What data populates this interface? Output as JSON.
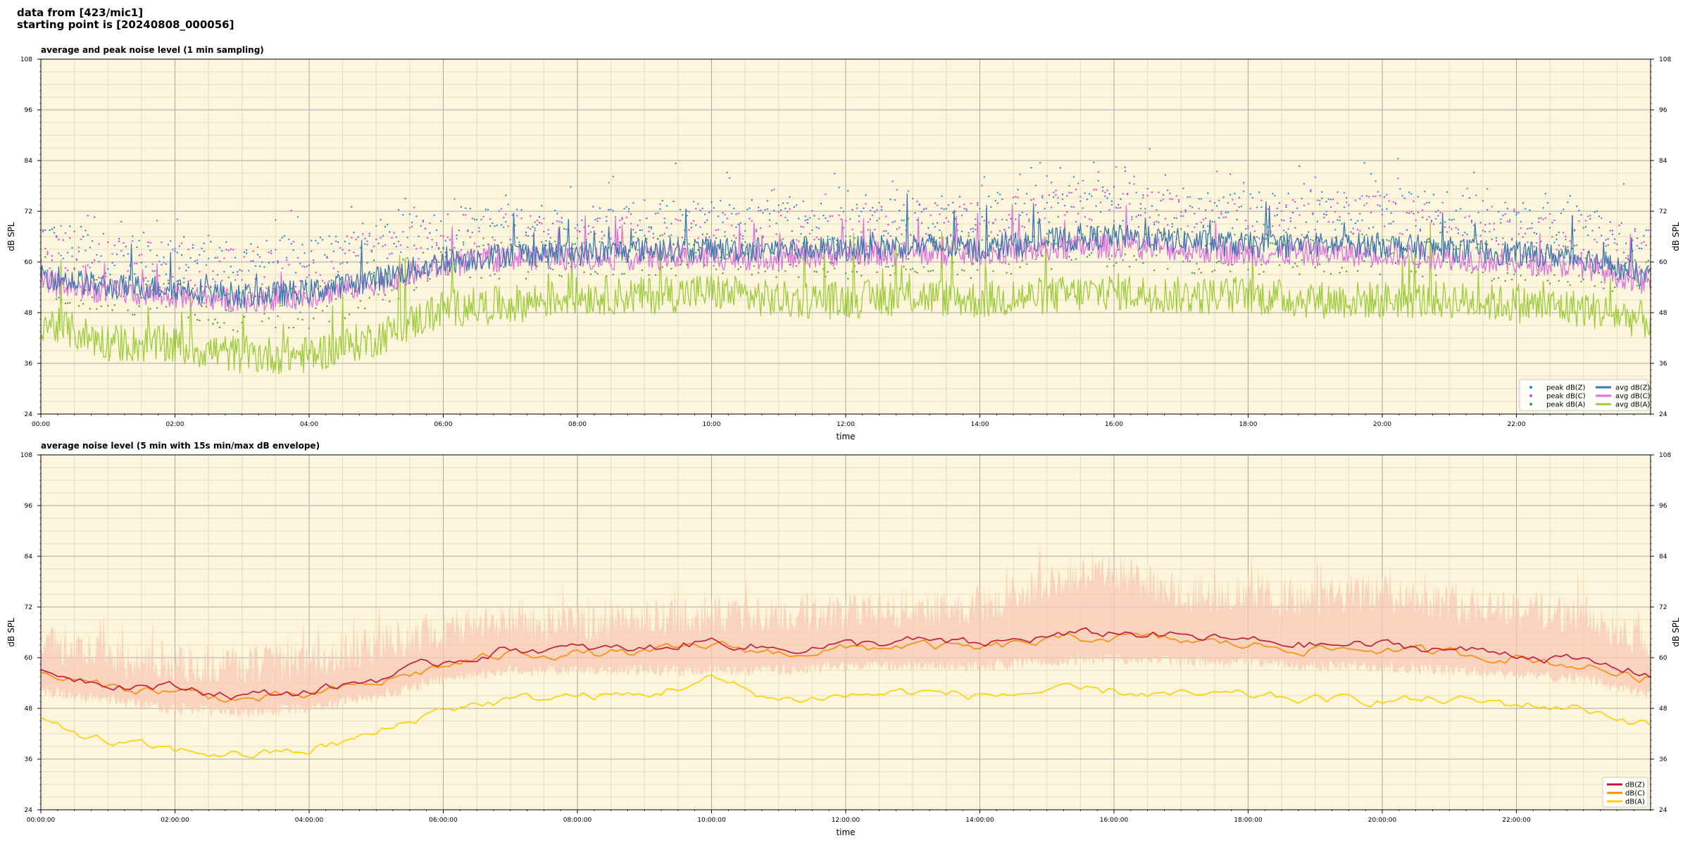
{
  "header": {
    "line1": "data from [423/mic1]",
    "line2": "starting point is [20240808_000056]"
  },
  "colors": {
    "plot_bg": "#fdf6dc",
    "grid_major": "#a8a8a8",
    "grid_minor": "#e6dcc0",
    "peak_z": "#1f8fd6",
    "peak_c": "#e040e0",
    "peak_a": "#4a9a3a",
    "avg_z": "#3b78b0",
    "avg_c": "#e070e0",
    "avg_a": "#9ccc3c",
    "z": "#c8143c",
    "c": "#ff8c00",
    "a": "#ffd000",
    "envelope": "#f8c8b4"
  },
  "chart_data": [
    {
      "type": "line",
      "title": "average and peak noise level (1 min sampling)",
      "xlabel": "time",
      "ylabel": "dB SPL",
      "ylim": [
        24,
        108
      ],
      "yticks": [
        "24",
        "36",
        "48",
        "60",
        "72",
        "84",
        "96",
        "108"
      ],
      "xlim_hours": [
        0,
        24
      ],
      "xticks": [
        "00:00",
        "02:00",
        "04:00",
        "06:00",
        "08:00",
        "10:00",
        "12:00",
        "14:00",
        "16:00",
        "18:00",
        "20:00",
        "22:00"
      ],
      "grid": true,
      "legend_position": "bottom-right",
      "legend": [
        {
          "label": "peak dB(Z)",
          "kind": "marker",
          "color_key": "peak_z"
        },
        {
          "label": "peak dB(C)",
          "kind": "marker",
          "color_key": "peak_c"
        },
        {
          "label": "peak dB(A)",
          "kind": "marker",
          "color_key": "peak_a"
        },
        {
          "label": "avg dB(Z)",
          "kind": "line",
          "color_key": "avg_z"
        },
        {
          "label": "avg dB(C)",
          "kind": "line",
          "color_key": "avg_c"
        },
        {
          "label": "avg dB(A)",
          "kind": "line",
          "color_key": "avg_a"
        }
      ],
      "x_hours": [
        0,
        1,
        2,
        3,
        4,
        5,
        6,
        7,
        8,
        9,
        10,
        11,
        12,
        13,
        14,
        15,
        16,
        17,
        18,
        19,
        20,
        21,
        22,
        23,
        24
      ],
      "series": [
        {
          "name": "avg dB(Z)",
          "color_key": "avg_z",
          "style": "line",
          "values": [
            57,
            54,
            54,
            52,
            53,
            56,
            60,
            62,
            62,
            63,
            63,
            63,
            63,
            64,
            63,
            65,
            66,
            65,
            64,
            64,
            64,
            63,
            62,
            61,
            56
          ]
        },
        {
          "name": "avg dB(C)",
          "color_key": "avg_c",
          "style": "line",
          "values": [
            55,
            53,
            52,
            51,
            52,
            55,
            59,
            61,
            61,
            61,
            61,
            61,
            62,
            62,
            62,
            63,
            64,
            63,
            62,
            62,
            62,
            61,
            60,
            59,
            55
          ]
        },
        {
          "name": "avg dB(A)",
          "color_key": "avg_a",
          "style": "line",
          "values": [
            46,
            41,
            40,
            38,
            38,
            42,
            49,
            50,
            52,
            52,
            53,
            51,
            51,
            52,
            51,
            52,
            53,
            52,
            52,
            51,
            51,
            51,
            50,
            49,
            46
          ]
        },
        {
          "name": "peak dB(Z)",
          "color_key": "peak_z",
          "style": "scatter",
          "values": [
            64,
            60,
            60,
            58,
            60,
            63,
            66,
            67,
            67,
            67,
            68,
            68,
            68,
            69,
            69,
            72,
            73,
            71,
            70,
            70,
            71,
            69,
            68,
            67,
            62
          ]
        },
        {
          "name": "peak dB(C)",
          "color_key": "peak_c",
          "style": "scatter",
          "values": [
            62,
            58,
            58,
            56,
            57,
            61,
            64,
            65,
            65,
            65,
            66,
            66,
            66,
            67,
            67,
            70,
            71,
            69,
            68,
            68,
            69,
            67,
            66,
            65,
            60
          ]
        },
        {
          "name": "peak dB(A)",
          "color_key": "peak_a",
          "style": "scatter",
          "values": [
            55,
            50,
            49,
            46,
            47,
            52,
            58,
            59,
            59,
            59,
            60,
            59,
            59,
            60,
            59,
            61,
            62,
            60,
            60,
            60,
            60,
            59,
            58,
            57,
            53
          ]
        }
      ]
    },
    {
      "type": "line",
      "title": "average noise level (5 min with 15s min/max dB envelope)",
      "xlabel": "time",
      "ylabel": "dB SPL",
      "ylim": [
        24,
        108
      ],
      "yticks": [
        "24",
        "36",
        "48",
        "60",
        "72",
        "84",
        "96",
        "108"
      ],
      "xlim_hours": [
        0,
        24
      ],
      "xticks": [
        "00:00:00",
        "02:00:00",
        "04:00:00",
        "06:00:00",
        "08:00:00",
        "10:00:00",
        "12:00:00",
        "14:00:00",
        "16:00:00",
        "18:00:00",
        "20:00:00",
        "22:00:00"
      ],
      "grid": true,
      "legend_position": "bottom-right",
      "legend": [
        {
          "label": "dB(Z)",
          "kind": "line",
          "color_key": "z"
        },
        {
          "label": "dB(C)",
          "kind": "line",
          "color_key": "c"
        },
        {
          "label": "dB(A)",
          "kind": "line",
          "color_key": "a"
        }
      ],
      "x_hours": [
        0,
        1,
        2,
        3,
        4,
        5,
        6,
        7,
        8,
        9,
        10,
        11,
        12,
        13,
        14,
        15,
        16,
        17,
        18,
        19,
        20,
        21,
        22,
        23,
        24
      ],
      "envelope": {
        "color_key": "envelope",
        "lower": [
          52,
          50,
          48,
          47,
          48,
          51,
          55,
          57,
          57,
          57,
          57,
          57,
          58,
          58,
          58,
          59,
          60,
          59,
          59,
          58,
          58,
          57,
          56,
          55,
          51
        ],
        "upper": [
          64,
          60,
          59,
          58,
          59,
          63,
          67,
          69,
          68,
          69,
          70,
          70,
          71,
          72,
          72,
          78,
          80,
          76,
          75,
          74,
          76,
          73,
          72,
          70,
          64
        ]
      },
      "series": [
        {
          "name": "dB(Z)",
          "color_key": "z",
          "style": "line",
          "values": [
            57,
            54,
            53,
            51,
            52,
            55,
            59,
            62,
            62,
            62,
            64,
            62,
            63,
            64,
            63,
            65,
            66,
            65,
            64,
            63,
            63,
            62,
            61,
            59,
            56
          ]
        },
        {
          "name": "dB(C)",
          "color_key": "c",
          "style": "line",
          "values": [
            56,
            53,
            52,
            50,
            51,
            54,
            58,
            61,
            61,
            61,
            63,
            61,
            62,
            63,
            62,
            64,
            65,
            64,
            63,
            62,
            62,
            61,
            60,
            58,
            55
          ]
        },
        {
          "name": "dB(A)",
          "color_key": "a",
          "style": "line",
          "values": [
            45,
            40,
            38,
            37,
            38,
            42,
            48,
            50,
            51,
            51,
            55,
            50,
            51,
            52,
            51,
            52,
            52,
            51,
            51,
            50,
            50,
            50,
            49,
            48,
            44
          ]
        }
      ]
    }
  ]
}
